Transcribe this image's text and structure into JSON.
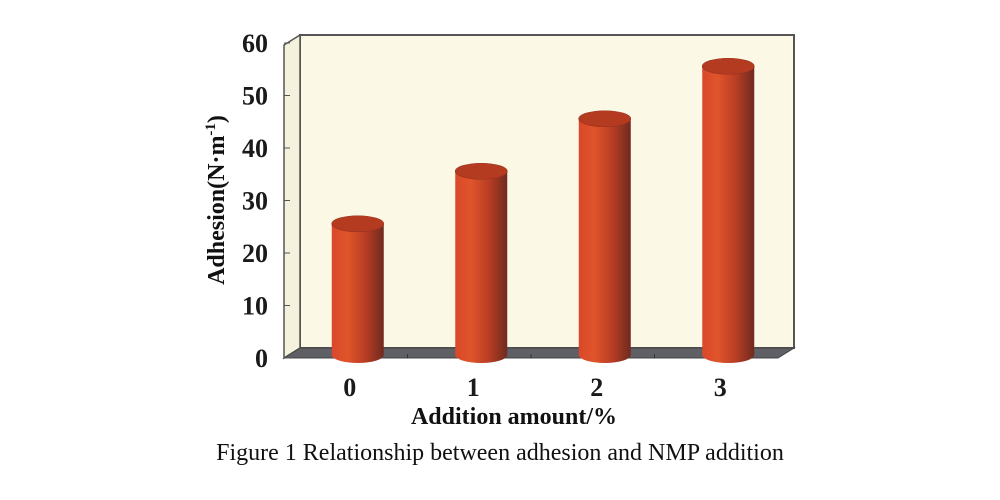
{
  "chart_data": {
    "type": "bar",
    "style": "3d-cylinder",
    "title": "",
    "caption": "Figure 1 Relationship between adhesion and NMP addition",
    "xlabel": "Addition amount/%",
    "ylabel": "Adhesion(N·m⁻¹)",
    "ylabel_base": "Adhesion(N·m",
    "ylabel_sup": "-1",
    "ylabel_close": ")",
    "categories": [
      "0",
      "1",
      "2",
      "3"
    ],
    "values": [
      25,
      35,
      45,
      55
    ],
    "series": [
      {
        "name": "Adhesion",
        "values": [
          25,
          35,
          45,
          55
        ]
      }
    ],
    "ylim": [
      0,
      60
    ],
    "yticks": [
      0,
      10,
      20,
      30,
      40,
      50,
      60
    ],
    "ytick_labels": [
      "0",
      "10",
      "20",
      "30",
      "40",
      "50",
      "60"
    ],
    "grid": false,
    "legend": "none",
    "colors": {
      "bar_light": "#e0542a",
      "bar_mid": "#c8401e",
      "bar_dark": "#7a2a1e",
      "bar_top": "#b53b20",
      "wall": "#fbf9e6",
      "side_wall": "#f4f2dc",
      "floor": "#5f6065",
      "frame": "#555555"
    }
  }
}
